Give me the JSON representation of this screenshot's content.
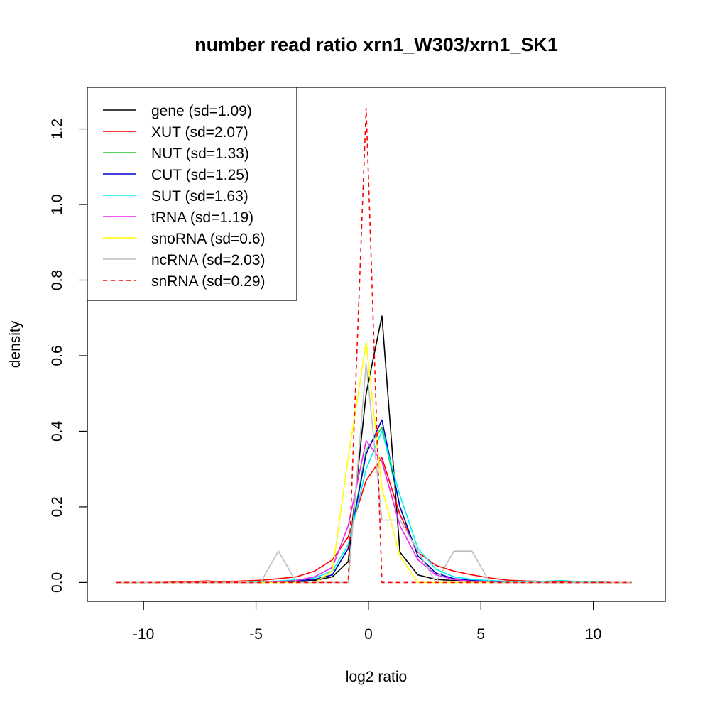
{
  "chart_data": {
    "type": "line",
    "title": "number read ratio xrn1_W303/xrn1_SK1",
    "xlabel": "log2 ratio",
    "ylabel": "density",
    "xlim": [
      -12.5,
      13.2
    ],
    "ylim": [
      -0.05,
      1.31
    ],
    "x_ticks": [
      -10,
      -5,
      0,
      5,
      10
    ],
    "y_ticks": [
      0.0,
      0.2,
      0.4,
      0.6,
      0.8,
      1.0,
      1.2
    ],
    "x_tick_labels": [
      "-10",
      "-5",
      "0",
      "5",
      "10"
    ],
    "y_tick_labels": [
      "0.0",
      "0.2",
      "0.4",
      "0.6",
      "0.8",
      "1.0",
      "1.2"
    ],
    "grid": false,
    "legend_position": "top-left",
    "series": [
      {
        "name": "gene (sd=1.09)",
        "color": "#000000",
        "dashed": false,
        "x": [
          -11.2,
          -10.4,
          -9.6,
          -8.8,
          -8.0,
          -7.2,
          -6.4,
          -5.6,
          -4.8,
          -4.0,
          -3.2,
          -2.4,
          -1.6,
          -0.9,
          -0.1,
          0.6,
          1.4,
          2.2,
          3.0,
          3.8,
          4.6,
          5.4,
          6.2,
          7.0,
          7.8,
          8.6,
          9.4,
          10.2,
          11.0,
          11.7
        ],
        "y": [
          0,
          0,
          0,
          0,
          0,
          0,
          0,
          0,
          0,
          0.001,
          0.002,
          0.005,
          0.015,
          0.055,
          0.5,
          0.705,
          0.08,
          0.02,
          0.008,
          0.005,
          0.003,
          0.002,
          0.001,
          0,
          0,
          0,
          0,
          0,
          0,
          0
        ]
      },
      {
        "name": "XUT (sd=2.07)",
        "color": "#ff0000",
        "dashed": false,
        "x": [
          -11.2,
          -10.4,
          -9.6,
          -8.8,
          -8.0,
          -7.2,
          -6.4,
          -5.6,
          -4.8,
          -4.0,
          -3.2,
          -2.4,
          -1.6,
          -0.9,
          -0.1,
          0.6,
          1.4,
          2.2,
          3.0,
          3.8,
          4.6,
          5.4,
          6.2,
          7.0,
          7.8,
          8.6,
          9.4,
          10.2,
          11.0,
          11.7
        ],
        "y": [
          0,
          0,
          0,
          0.001,
          0.002,
          0.004,
          0.002,
          0.004,
          0.006,
          0.01,
          0.015,
          0.03,
          0.06,
          0.12,
          0.27,
          0.33,
          0.18,
          0.08,
          0.045,
          0.03,
          0.02,
          0.012,
          0.006,
          0.004,
          0.003,
          0.002,
          0.001,
          0.001,
          0,
          0
        ]
      },
      {
        "name": "NUT (sd=1.33)",
        "color": "#22cc22",
        "dashed": false,
        "x": [
          -11.2,
          -10.4,
          -9.6,
          -8.8,
          -8.0,
          -7.2,
          -6.4,
          -5.6,
          -4.8,
          -4.0,
          -3.2,
          -2.4,
          -1.6,
          -0.9,
          -0.1,
          0.6,
          1.4,
          2.2,
          3.0,
          3.8,
          4.6,
          5.4,
          6.2,
          7.0,
          7.8,
          8.6,
          9.4,
          10.2,
          11.0,
          11.7
        ],
        "y": [
          0,
          0,
          0,
          0,
          0,
          0,
          0,
          0,
          0.001,
          0.002,
          0.004,
          0.008,
          0.02,
          0.09,
          0.35,
          0.41,
          0.2,
          0.07,
          0.025,
          0.01,
          0.005,
          0.003,
          0.002,
          0.001,
          0,
          0,
          0,
          0,
          0,
          0
        ]
      },
      {
        "name": "CUT (sd=1.25)",
        "color": "#0000cc",
        "dashed": false,
        "x": [
          -11.2,
          -10.4,
          -9.6,
          -8.8,
          -8.0,
          -7.2,
          -6.4,
          -5.6,
          -4.8,
          -4.0,
          -3.2,
          -2.4,
          -1.6,
          -0.9,
          -0.1,
          0.6,
          1.4,
          2.2,
          3.0,
          3.8,
          4.6,
          5.4,
          6.2,
          7.0,
          7.8,
          8.6,
          9.4,
          10.2,
          11.0,
          11.7
        ],
        "y": [
          0,
          0,
          0,
          0,
          0,
          0,
          0,
          0,
          0.001,
          0.002,
          0.004,
          0.008,
          0.02,
          0.09,
          0.34,
          0.43,
          0.2,
          0.07,
          0.025,
          0.01,
          0.005,
          0.003,
          0.002,
          0.001,
          0,
          0,
          0,
          0,
          0,
          0
        ]
      },
      {
        "name": "SUT (sd=1.63)",
        "color": "#00eeee",
        "dashed": false,
        "x": [
          -11.2,
          -10.4,
          -9.6,
          -8.8,
          -8.0,
          -7.2,
          -6.4,
          -5.6,
          -4.8,
          -4.0,
          -3.2,
          -2.4,
          -1.6,
          -0.9,
          -0.1,
          0.6,
          1.4,
          2.2,
          3.0,
          3.8,
          4.6,
          5.4,
          6.2,
          7.0,
          7.8,
          8.6,
          9.4,
          10.2,
          11.0,
          11.7
        ],
        "y": [
          0,
          0,
          0,
          0,
          0,
          0,
          0,
          0,
          0.002,
          0.004,
          0.007,
          0.012,
          0.03,
          0.1,
          0.3,
          0.4,
          0.23,
          0.09,
          0.035,
          0.015,
          0.008,
          0.005,
          0.003,
          0.002,
          0.003,
          0.005,
          0.002,
          0.001,
          0,
          0
        ]
      },
      {
        "name": "tRNA (sd=1.19)",
        "color": "#ee22ee",
        "dashed": false,
        "x": [
          -11.2,
          -10.4,
          -9.6,
          -8.8,
          -8.0,
          -7.2,
          -6.4,
          -5.6,
          -4.8,
          -4.0,
          -3.2,
          -2.4,
          -1.6,
          -0.9,
          -0.1,
          0.6,
          1.4,
          2.2,
          3.0,
          3.8,
          4.6,
          5.4,
          6.2,
          7.0,
          7.8,
          8.6,
          9.4,
          10.2,
          11.0,
          11.7
        ],
        "y": [
          0,
          0,
          0,
          0,
          0,
          0,
          0,
          0,
          0,
          0.002,
          0.005,
          0.015,
          0.04,
          0.15,
          0.375,
          0.32,
          0.15,
          0.06,
          0.02,
          0.008,
          0.003,
          0.001,
          0,
          0,
          0,
          0,
          0,
          0,
          0,
          0
        ]
      },
      {
        "name": "snoRNA (sd=0.6)",
        "color": "#ffff00",
        "dashed": false,
        "x": [
          -11.2,
          -10.4,
          -9.6,
          -8.8,
          -8.0,
          -7.2,
          -6.4,
          -5.6,
          -4.8,
          -4.0,
          -3.2,
          -2.4,
          -1.6,
          -0.9,
          -0.1,
          0.6,
          1.4,
          2.2,
          3.0,
          3.8,
          4.6,
          5.4,
          6.2,
          7.0,
          7.8,
          8.6,
          9.4,
          10.2,
          11.0,
          11.7
        ],
        "y": [
          0,
          0,
          0,
          0,
          0,
          0,
          0,
          0,
          0,
          0,
          0,
          0,
          0.03,
          0.33,
          0.635,
          0.25,
          0.07,
          0,
          0,
          0,
          0,
          0,
          0,
          0,
          0,
          0,
          0,
          0,
          0,
          0
        ]
      },
      {
        "name": "ncRNA (sd=2.03)",
        "color": "#bebebe",
        "dashed": false,
        "x": [
          -11.2,
          -10.4,
          -9.6,
          -8.8,
          -8.0,
          -7.2,
          -6.4,
          -5.6,
          -4.8,
          -4.0,
          -3.2,
          -2.4,
          -1.6,
          -0.9,
          -0.1,
          0.6,
          1.4,
          2.2,
          3.0,
          3.8,
          4.6,
          5.4,
          6.2,
          7.0,
          7.8,
          8.6,
          9.4,
          10.2,
          11.0,
          11.7
        ],
        "y": [
          0,
          0,
          0,
          0,
          0,
          0,
          0,
          0,
          0,
          0.083,
          0,
          0,
          0,
          0,
          0.58,
          0.165,
          0.165,
          0.083,
          0,
          0.083,
          0.083,
          0,
          0,
          0,
          0,
          0,
          0,
          0,
          0,
          0
        ]
      },
      {
        "name": "snRNA (sd=0.29)",
        "color": "#ff0000",
        "dashed": true,
        "x": [
          -11.2,
          -10.4,
          -9.6,
          -8.8,
          -8.0,
          -7.2,
          -6.4,
          -5.6,
          -4.8,
          -4.0,
          -3.2,
          -2.4,
          -1.6,
          -0.9,
          -0.1,
          0.6,
          1.4,
          2.2,
          3.0,
          3.8,
          4.6,
          5.4,
          6.2,
          7.0,
          7.8,
          8.6,
          9.4,
          10.2,
          11.0,
          11.7
        ],
        "y": [
          0,
          0,
          0,
          0,
          0,
          0,
          0,
          0,
          0,
          0,
          0,
          0,
          0,
          0,
          1.255,
          0,
          0,
          0,
          0,
          0,
          0,
          0,
          0,
          0,
          0,
          0,
          0,
          0,
          0,
          0
        ]
      }
    ]
  }
}
